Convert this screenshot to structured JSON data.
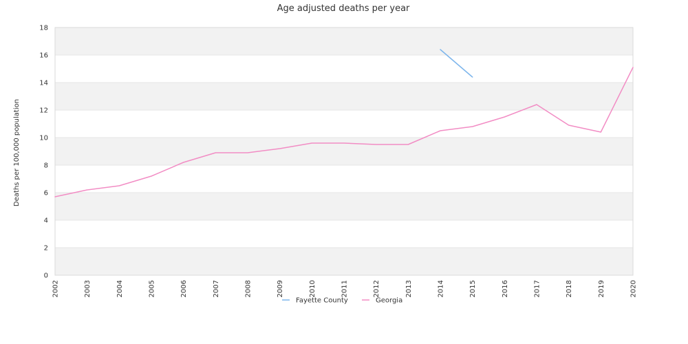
{
  "chart_data": {
    "type": "line",
    "title": "Age adjusted deaths per year",
    "ylabel": "Deaths per 100,000 population",
    "xlabel": "",
    "ylim": [
      0,
      18
    ],
    "yticks": [
      0,
      2,
      4,
      6,
      8,
      10,
      12,
      14,
      16,
      18
    ],
    "categories": [
      "2002",
      "2003",
      "2004",
      "2005",
      "2006",
      "2007",
      "2008",
      "2009",
      "2010",
      "2011",
      "2012",
      "2013",
      "2014",
      "2015",
      "2016",
      "2017",
      "2018",
      "2019",
      "2020"
    ],
    "grid": "horizontal-bands",
    "legend_position": "bottom-center",
    "series": [
      {
        "name": "Fayette County",
        "color": "#7cb5ec",
        "values": [
          null,
          null,
          null,
          null,
          null,
          null,
          null,
          null,
          null,
          null,
          null,
          null,
          16.4,
          14.4,
          null,
          null,
          null,
          null,
          null
        ]
      },
      {
        "name": "Georgia",
        "color": "#f28cc4",
        "values": [
          5.7,
          6.2,
          6.5,
          7.2,
          8.2,
          8.9,
          8.9,
          9.2,
          9.6,
          9.6,
          9.5,
          9.5,
          10.5,
          10.8,
          11.5,
          12.4,
          10.9,
          10.4,
          15.1
        ]
      }
    ]
  }
}
